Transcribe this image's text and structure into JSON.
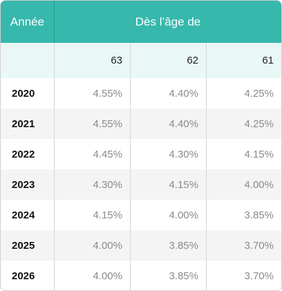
{
  "table": {
    "year_header": "Année",
    "group_header": "Dès l’âge de",
    "age_columns": [
      "63",
      "62",
      "61"
    ],
    "rows": [
      {
        "year": "2020",
        "values": [
          "4.55%",
          "4.40%",
          "4.25%"
        ]
      },
      {
        "year": "2021",
        "values": [
          "4.55%",
          "4.40%",
          "4.25%"
        ]
      },
      {
        "year": "2022",
        "values": [
          "4.45%",
          "4.30%",
          "4.15%"
        ]
      },
      {
        "year": "2023",
        "values": [
          "4.30%",
          "4.15%",
          "4.00%"
        ]
      },
      {
        "year": "2024",
        "values": [
          "4.15%",
          "4.00%",
          "3.85%"
        ]
      },
      {
        "year": "2025",
        "values": [
          "4.00%",
          "3.85%",
          "3.70%"
        ]
      },
      {
        "year": "2026",
        "values": [
          "4.00%",
          "3.85%",
          "3.70%"
        ]
      }
    ],
    "colors": {
      "header_bg": "#37b8ac",
      "subheader_bg": "#e9f7f6",
      "alt_row_bg": "#f4f4f4"
    }
  }
}
